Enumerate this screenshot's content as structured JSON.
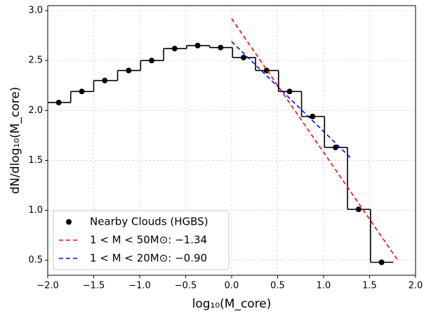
{
  "chart_data": {
    "type": "scatter",
    "x_label": "log₁₀(M_core)",
    "y_label": "dN/dlog₁₀(M_core)",
    "xlim": [
      -2,
      2
    ],
    "ylim": [
      0.35,
      3.05
    ],
    "xticks": [
      {
        "value": -2,
        "label": "−2.0"
      },
      {
        "value": -1.5,
        "label": "−1.5"
      },
      {
        "value": -1,
        "label": "−1.0"
      },
      {
        "value": -0.5,
        "label": "−0.5"
      },
      {
        "value": 0,
        "label": "0.0"
      },
      0.5,
      {
        "value": 1,
        "label": "1.0"
      },
      1.5,
      {
        "value": 2,
        "label": "2.0"
      }
    ],
    "yticks": [
      0.5,
      {
        "value": 1,
        "label": "1.0"
      },
      1.5,
      {
        "value": 2,
        "label": "2.0"
      },
      2.5,
      {
        "value": 3,
        "label": "3.0"
      }
    ],
    "grid": true,
    "legend": "lower left",
    "bins": [
      -2.0,
      -1.75,
      -1.5,
      -1.24,
      -0.99,
      -0.74,
      -0.49,
      -0.24,
      0.01,
      0.26,
      0.51,
      0.76,
      1.01,
      1.26,
      1.51,
      1.76
    ],
    "series": [
      {
        "name": "Nearby Clouds (HGBS)",
        "color": "#000000",
        "x": [
          -1.88,
          -1.63,
          -1.38,
          -1.12,
          -0.87,
          -0.62,
          -0.37,
          -0.12,
          0.13,
          0.38,
          0.63,
          0.88,
          1.13,
          1.38,
          1.63
        ],
        "values": [
          2.08,
          2.19,
          2.3,
          2.4,
          2.5,
          2.62,
          2.65,
          2.63,
          2.53,
          2.4,
          2.19,
          1.94,
          1.63,
          1.01,
          0.48
        ]
      },
      {
        "name": "1 < M < 50M⊙: −1.34",
        "color": "#ff0000",
        "x": [
          0,
          1.8
        ],
        "values": [
          2.92,
          0.51
        ]
      },
      {
        "name": "1 < M < 20M⊙: −0.90",
        "color": "#0000ff",
        "x": [
          0,
          1.3
        ],
        "values": [
          2.69,
          1.52
        ]
      }
    ]
  }
}
